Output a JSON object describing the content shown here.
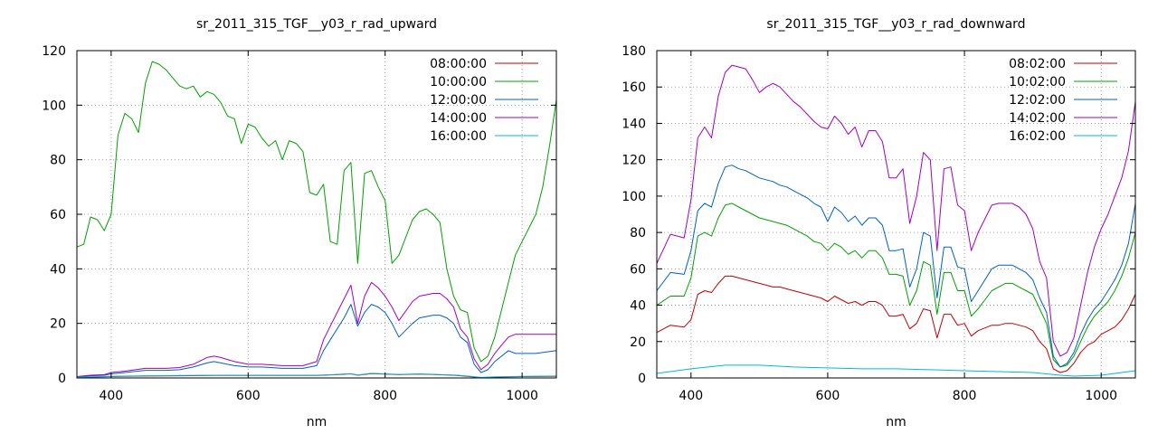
{
  "chart_data": [
    {
      "type": "line",
      "title": "sr_2011_315_TGF__y03_r_rad_upward",
      "xlabel": "nm",
      "ylabel": "",
      "xlim": [
        350,
        1050
      ],
      "ylim": [
        0,
        120
      ],
      "xticks": [
        400,
        600,
        800,
        1000
      ],
      "yticks": [
        0,
        20,
        40,
        60,
        80,
        100,
        120
      ],
      "grid": true,
      "legend_position": "top-right",
      "series": [
        {
          "name": "08:00:00",
          "color": "#c00000",
          "x": [
            350,
            400,
            450,
            500,
            550,
            600,
            650,
            700,
            730,
            750,
            760,
            780,
            800,
            820,
            850,
            900,
            920,
            940,
            960,
            1000,
            1050
          ],
          "y": [
            0.2,
            0.5,
            0.7,
            0.8,
            0.9,
            0.9,
            0.9,
            0.9,
            1.2,
            1.5,
            1.0,
            1.6,
            1.4,
            1.2,
            1.4,
            1.0,
            0.6,
            0.1,
            0.3,
            0.5,
            0.6
          ]
        },
        {
          "name": "10:00:00",
          "color": "#00a000",
          "x": [
            350,
            360,
            370,
            380,
            390,
            400,
            410,
            420,
            430,
            440,
            450,
            460,
            470,
            480,
            490,
            500,
            510,
            520,
            530,
            540,
            550,
            560,
            570,
            580,
            590,
            600,
            610,
            620,
            630,
            640,
            650,
            660,
            670,
            680,
            690,
            700,
            710,
            720,
            730,
            740,
            750,
            760,
            770,
            780,
            790,
            800,
            810,
            820,
            840,
            850,
            860,
            870,
            880,
            890,
            900,
            910,
            920,
            930,
            940,
            950,
            960,
            970,
            980,
            990,
            1000,
            1010,
            1020,
            1030,
            1040,
            1050
          ],
          "y": [
            48,
            49,
            59,
            58,
            54,
            60,
            89,
            97,
            95,
            90,
            108,
            116,
            115,
            113,
            110,
            107,
            106,
            107,
            103,
            105,
            104,
            101,
            96,
            95,
            86,
            93,
            92,
            88,
            85,
            87,
            80,
            87,
            86,
            83,
            68,
            67,
            71,
            50,
            49,
            76,
            79,
            42,
            75,
            76,
            70,
            65,
            42,
            45,
            58,
            61,
            62,
            60,
            57,
            40,
            30,
            25,
            24,
            11,
            6,
            8,
            15,
            25,
            35,
            45,
            50,
            55,
            60,
            70,
            85,
            102
          ]
        },
        {
          "name": "12:00:00",
          "color": "#0060c0",
          "x": [
            350,
            370,
            390,
            400,
            420,
            450,
            480,
            500,
            520,
            540,
            550,
            560,
            580,
            600,
            620,
            650,
            680,
            700,
            710,
            720,
            740,
            750,
            760,
            770,
            780,
            790,
            800,
            810,
            820,
            840,
            850,
            870,
            880,
            890,
            900,
            910,
            920,
            930,
            940,
            950,
            960,
            970,
            980,
            990,
            1000,
            1020,
            1050
          ],
          "y": [
            0.4,
            0.8,
            1,
            1.5,
            2,
            2.8,
            2.8,
            3,
            4,
            5.5,
            6,
            5.5,
            4.5,
            4,
            4,
            3.5,
            3.5,
            4.5,
            10,
            14,
            22,
            27,
            19,
            24,
            27,
            26,
            24,
            20,
            15,
            20,
            22,
            23,
            23,
            22,
            20,
            15,
            13,
            5,
            2,
            3,
            6,
            8,
            10,
            9,
            9,
            9,
            10
          ]
        },
        {
          "name": "14:00:00",
          "color": "#a000c0",
          "x": [
            350,
            370,
            390,
            400,
            420,
            450,
            480,
            500,
            520,
            540,
            550,
            560,
            580,
            600,
            620,
            650,
            680,
            700,
            710,
            720,
            740,
            750,
            760,
            770,
            780,
            790,
            800,
            810,
            820,
            840,
            850,
            870,
            880,
            890,
            900,
            910,
            920,
            930,
            940,
            950,
            960,
            970,
            980,
            990,
            1000,
            1020,
            1050
          ],
          "y": [
            0.5,
            1,
            1.2,
            2,
            2.5,
            3.5,
            3.5,
            3.8,
            5,
            7.5,
            8,
            7.5,
            6,
            5,
            5,
            4.5,
            4.5,
            6,
            14,
            19,
            29,
            34,
            20,
            30,
            35,
            33,
            30,
            26,
            21,
            28,
            30,
            31,
            31,
            29,
            26,
            18,
            15,
            7,
            3,
            5,
            9,
            12,
            15,
            16,
            16,
            16,
            16
          ]
        },
        {
          "name": "16:00:00",
          "color": "#00b8e0",
          "x": [
            350,
            400,
            450,
            500,
            550,
            600,
            650,
            700,
            730,
            750,
            760,
            780,
            800,
            820,
            850,
            900,
            920,
            940,
            960,
            1000,
            1050
          ],
          "y": [
            0.3,
            0.6,
            0.8,
            0.9,
            1,
            1,
            1,
            1,
            1.3,
            1.6,
            1.1,
            1.7,
            1.5,
            1.3,
            1.5,
            1.1,
            0.7,
            0.2,
            0.4,
            0.6,
            0.7
          ]
        }
      ]
    },
    {
      "type": "line",
      "title": "sr_2011_315_TGF__y03_r_rad_downward",
      "xlabel": "nm",
      "ylabel": "",
      "xlim": [
        350,
        1050
      ],
      "ylim": [
        0,
        180
      ],
      "xticks": [
        400,
        600,
        800,
        1000
      ],
      "yticks": [
        0,
        20,
        40,
        60,
        80,
        100,
        120,
        140,
        160,
        180
      ],
      "grid": true,
      "legend_position": "top-right",
      "series": [
        {
          "name": "08:02:00",
          "color": "#c00000",
          "x": [
            350,
            370,
            390,
            400,
            410,
            420,
            430,
            440,
            450,
            460,
            470,
            480,
            490,
            500,
            510,
            520,
            530,
            540,
            550,
            560,
            570,
            580,
            590,
            600,
            610,
            620,
            630,
            640,
            650,
            660,
            670,
            680,
            690,
            700,
            710,
            720,
            730,
            740,
            750,
            760,
            770,
            780,
            790,
            800,
            810,
            820,
            840,
            850,
            860,
            870,
            880,
            890,
            900,
            910,
            920,
            930,
            940,
            950,
            960,
            970,
            980,
            990,
            1000,
            1010,
            1020,
            1030,
            1040,
            1050
          ],
          "y": [
            25,
            29,
            28,
            32,
            46,
            48,
            47,
            52,
            56,
            56,
            55,
            54,
            53,
            52,
            51,
            50,
            50,
            49,
            48,
            47,
            46,
            45,
            44,
            42,
            45,
            43,
            41,
            42,
            40,
            42,
            42,
            40,
            34,
            34,
            35,
            27,
            30,
            38,
            37,
            22,
            35,
            35,
            29,
            30,
            23,
            26,
            29,
            29,
            30,
            30,
            29,
            28,
            26,
            20,
            16,
            5,
            3,
            4,
            8,
            14,
            18,
            20,
            24,
            26,
            28,
            32,
            38,
            46
          ]
        },
        {
          "name": "10:02:00",
          "color": "#00a000",
          "x": [
            350,
            370,
            390,
            400,
            410,
            420,
            430,
            440,
            450,
            460,
            470,
            480,
            490,
            500,
            510,
            520,
            530,
            540,
            550,
            560,
            570,
            580,
            590,
            600,
            610,
            620,
            630,
            640,
            650,
            660,
            670,
            680,
            690,
            700,
            710,
            720,
            730,
            740,
            750,
            760,
            770,
            780,
            790,
            800,
            810,
            820,
            840,
            850,
            860,
            870,
            880,
            890,
            900,
            910,
            920,
            930,
            940,
            950,
            960,
            970,
            980,
            990,
            1000,
            1010,
            1020,
            1030,
            1040,
            1050
          ],
          "y": [
            40,
            45,
            45,
            55,
            78,
            80,
            78,
            88,
            95,
            96,
            94,
            92,
            90,
            88,
            87,
            86,
            85,
            84,
            82,
            80,
            78,
            75,
            74,
            70,
            74,
            72,
            68,
            70,
            66,
            70,
            70,
            66,
            57,
            57,
            56,
            40,
            48,
            64,
            62,
            35,
            58,
            58,
            48,
            48,
            34,
            38,
            48,
            50,
            52,
            52,
            50,
            48,
            46,
            38,
            30,
            10,
            6,
            7,
            12,
            20,
            28,
            34,
            38,
            42,
            48,
            56,
            66,
            80
          ]
        },
        {
          "name": "12:02:00",
          "color": "#0060c0",
          "x": [
            350,
            370,
            390,
            400,
            410,
            420,
            430,
            440,
            450,
            460,
            470,
            480,
            490,
            500,
            510,
            520,
            530,
            540,
            550,
            560,
            570,
            580,
            590,
            600,
            610,
            620,
            630,
            640,
            650,
            660,
            670,
            680,
            690,
            700,
            710,
            720,
            730,
            740,
            750,
            760,
            770,
            780,
            790,
            800,
            810,
            820,
            840,
            850,
            860,
            870,
            880,
            890,
            900,
            910,
            920,
            930,
            940,
            950,
            960,
            970,
            980,
            990,
            1000,
            1010,
            1020,
            1030,
            1040,
            1050
          ],
          "y": [
            48,
            58,
            57,
            70,
            92,
            96,
            94,
            107,
            116,
            117,
            115,
            114,
            112,
            110,
            109,
            108,
            106,
            105,
            103,
            101,
            99,
            96,
            94,
            86,
            94,
            91,
            86,
            89,
            84,
            88,
            88,
            84,
            70,
            70,
            71,
            50,
            60,
            80,
            78,
            44,
            72,
            72,
            61,
            60,
            42,
            48,
            60,
            62,
            62,
            62,
            60,
            58,
            54,
            44,
            36,
            12,
            6,
            8,
            14,
            24,
            32,
            38,
            42,
            48,
            54,
            62,
            74,
            96
          ]
        },
        {
          "name": "14:02:00",
          "color": "#a000c0",
          "x": [
            350,
            370,
            390,
            400,
            410,
            420,
            430,
            440,
            450,
            460,
            470,
            480,
            490,
            500,
            510,
            520,
            530,
            540,
            550,
            560,
            570,
            580,
            590,
            600,
            610,
            620,
            630,
            640,
            650,
            660,
            670,
            680,
            690,
            700,
            710,
            720,
            730,
            740,
            750,
            760,
            770,
            780,
            790,
            800,
            810,
            820,
            840,
            850,
            860,
            870,
            880,
            890,
            900,
            910,
            920,
            930,
            940,
            950,
            960,
            970,
            980,
            990,
            1000,
            1010,
            1020,
            1030,
            1040,
            1050
          ],
          "y": [
            63,
            79,
            77,
            98,
            132,
            138,
            132,
            155,
            168,
            172,
            171,
            170,
            164,
            157,
            160,
            162,
            160,
            156,
            152,
            149,
            145,
            141,
            138,
            137,
            144,
            140,
            134,
            138,
            127,
            136,
            136,
            130,
            110,
            110,
            115,
            85,
            100,
            124,
            120,
            70,
            115,
            116,
            95,
            92,
            70,
            80,
            95,
            96,
            96,
            96,
            94,
            90,
            82,
            64,
            55,
            20,
            12,
            14,
            22,
            40,
            58,
            72,
            82,
            90,
            100,
            110,
            125,
            152
          ]
        },
        {
          "name": "16:02:00",
          "color": "#00b8e0",
          "x": [
            350,
            400,
            450,
            500,
            550,
            600,
            650,
            700,
            750,
            800,
            850,
            900,
            940,
            960,
            1000,
            1050
          ],
          "y": [
            2.5,
            5,
            7,
            7,
            6,
            5.5,
            5,
            5,
            4.5,
            4,
            3.5,
            3,
            1.5,
            1,
            1.5,
            4
          ]
        }
      ]
    }
  ]
}
